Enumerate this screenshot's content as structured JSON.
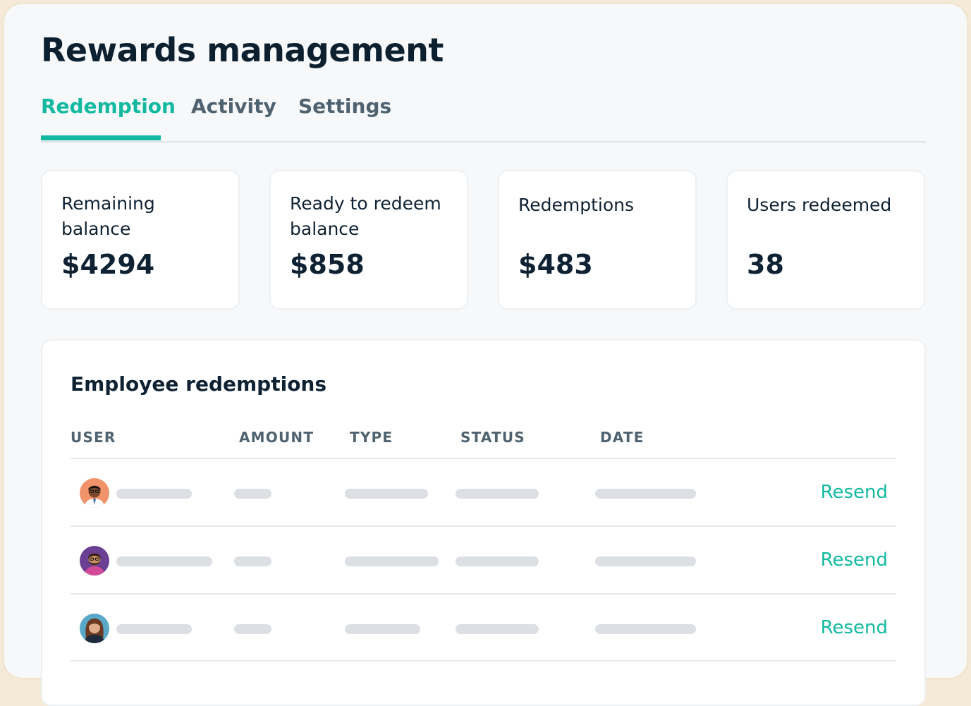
{
  "header": {
    "title": "Rewards management"
  },
  "tabs": [
    {
      "label": "Redemption",
      "active": true
    },
    {
      "label": "Activity",
      "active": false
    },
    {
      "label": "Settings",
      "active": false
    }
  ],
  "stats": [
    {
      "label": "Remaining balance",
      "value": "$4294"
    },
    {
      "label": "Ready to redeem balance",
      "value": "$858"
    },
    {
      "label": "Redemptions",
      "value": "$483"
    },
    {
      "label": "Users redeemed",
      "value": "38"
    }
  ],
  "table": {
    "title": "Employee redemptions",
    "columns": [
      "USER",
      "AMOUNT",
      "TYPE",
      "STATUS",
      "DATE"
    ],
    "rows": [
      {
        "avatar": "avatar-man-glasses",
        "action": "Resend"
      },
      {
        "avatar": "avatar-man-beard",
        "action": "Resend"
      },
      {
        "avatar": "avatar-woman-curly",
        "action": "Resend"
      }
    ]
  },
  "colors": {
    "accent": "#12b9a0",
    "text": "#0f2233",
    "muted": "#4f6270",
    "placeholder": "#dcdfe3",
    "frame_border": "#f1e6cf"
  }
}
